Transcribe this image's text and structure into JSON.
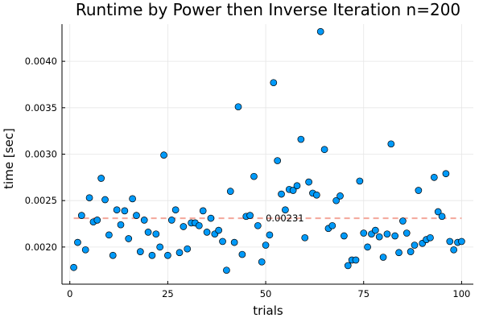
{
  "chart_data": {
    "type": "scatter",
    "title": "Runtime by Power then Inverse Iteration  n=200",
    "xlabel": "trials",
    "ylabel": "time [sec]",
    "xlim": [
      -2,
      103
    ],
    "ylim": [
      0.0016,
      0.0044
    ],
    "x_ticks": [
      0,
      25,
      50,
      75,
      100
    ],
    "x_tick_labels": [
      "0",
      "25",
      "50",
      "75",
      "100"
    ],
    "y_ticks": [
      0.002,
      0.0025,
      0.003,
      0.0035,
      0.004
    ],
    "y_tick_labels": [
      "0.0020",
      "0.0025",
      "0.0030",
      "0.0035",
      "0.0040"
    ],
    "grid": true,
    "legend": "none",
    "mean_line": {
      "value": 0.00231,
      "label": "0.00231",
      "color": "#f4a69a",
      "style": "dashed"
    },
    "marker_color": "#009af9",
    "series": [
      {
        "x": [
          1,
          2,
          3,
          4,
          5,
          6,
          7,
          8,
          9,
          10,
          11,
          12,
          13,
          14,
          15,
          16,
          17,
          18,
          19,
          20,
          21,
          22,
          23,
          24,
          25,
          26,
          27,
          28,
          29,
          30,
          31,
          32,
          33,
          34,
          35,
          36,
          37,
          38,
          39,
          40,
          41,
          42,
          43,
          44,
          45,
          46,
          47,
          48,
          49,
          50,
          51,
          52,
          53,
          54,
          55,
          56,
          57,
          58,
          59,
          60,
          61,
          62,
          63,
          64,
          65,
          66,
          67,
          68,
          69,
          70,
          71,
          72,
          73,
          74,
          75,
          76,
          77,
          78,
          79,
          80,
          81,
          82,
          83,
          84,
          85,
          86,
          87,
          88,
          89,
          90,
          91,
          92,
          93,
          94,
          95,
          96,
          97,
          98,
          99,
          100
        ],
        "y": [
          0.00178,
          0.00205,
          0.00234,
          0.00197,
          0.00253,
          0.00227,
          0.00229,
          0.00274,
          0.00251,
          0.00213,
          0.00191,
          0.0024,
          0.00224,
          0.00239,
          0.00209,
          0.00252,
          0.00234,
          0.00195,
          0.00229,
          0.00216,
          0.00191,
          0.00214,
          0.002,
          0.00299,
          0.00191,
          0.00229,
          0.0024,
          0.00194,
          0.00222,
          0.00198,
          0.00226,
          0.00226,
          0.00223,
          0.00239,
          0.00216,
          0.00231,
          0.00214,
          0.00218,
          0.00206,
          0.00175,
          0.0026,
          0.00205,
          0.00351,
          0.00192,
          0.00233,
          0.00234,
          0.00276,
          0.00223,
          0.00184,
          0.00202,
          0.00213,
          0.00377,
          0.00293,
          0.00257,
          0.0024,
          0.00262,
          0.00261,
          0.00266,
          0.00316,
          0.0021,
          0.0027,
          0.00258,
          0.00256,
          0.00432,
          0.00305,
          0.0022,
          0.00223,
          0.0025,
          0.00255,
          0.00212,
          0.0018,
          0.00186,
          0.00186,
          0.00271,
          0.00215,
          0.002,
          0.00214,
          0.00218,
          0.00211,
          0.00189,
          0.00214,
          0.00311,
          0.00212,
          0.00194,
          0.00228,
          0.00215,
          0.00195,
          0.00202,
          0.00261,
          0.00204,
          0.00208,
          0.0021,
          0.00275,
          0.00238,
          0.00233,
          0.00279,
          0.00206,
          0.00197,
          0.00205,
          0.00206
        ]
      }
    ]
  }
}
